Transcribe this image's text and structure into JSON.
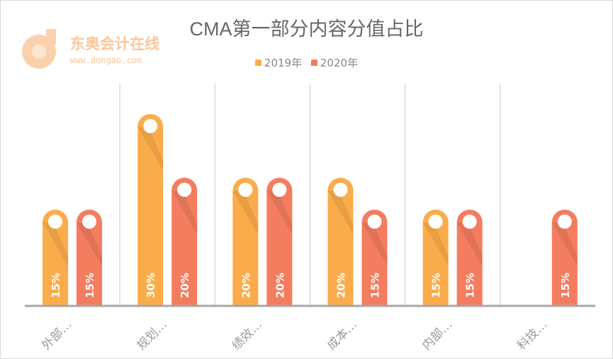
{
  "logo": {
    "text": "东奥会计在线",
    "url_text": "www.dongao.com"
  },
  "chart_data": {
    "type": "bar",
    "title": "CMA第一部分内容分值占比",
    "categories": [
      "外部…",
      "规划…",
      "绩效…",
      "成本…",
      "内部…",
      "科技…"
    ],
    "series": [
      {
        "name": "2019年",
        "color": "#fbac4a",
        "values": [
          15,
          30,
          20,
          20,
          15,
          0
        ],
        "labels": [
          "15%",
          "30%",
          "20%",
          "20%",
          "15%",
          ""
        ]
      },
      {
        "name": "2020年",
        "color": "#f47c5f",
        "values": [
          15,
          20,
          20,
          15,
          15,
          15
        ],
        "labels": [
          "15%",
          "20%",
          "20%",
          "15%",
          "15%",
          "15%"
        ]
      }
    ],
    "ylim": [
      0,
      35
    ],
    "legend": "top",
    "grid": "vertical category dividers"
  }
}
